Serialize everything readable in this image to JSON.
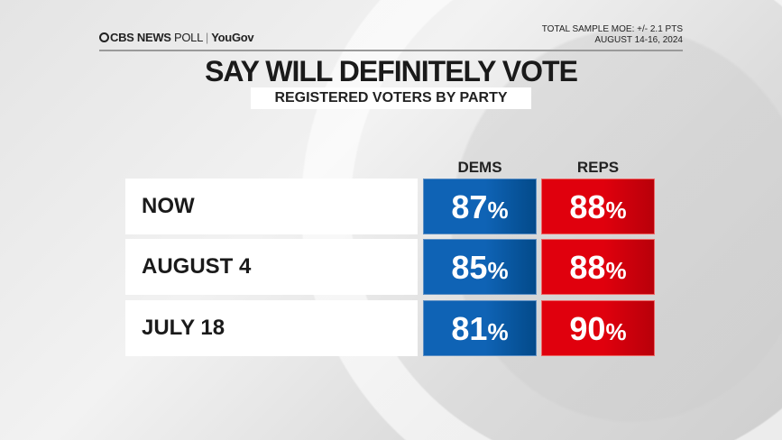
{
  "header": {
    "logo_brand": "CBS NEWS",
    "logo_poll": "POLL",
    "logo_sep": "|",
    "logo_partner": "YouGov",
    "moe": "TOTAL SAMPLE MOE: +/- 2.1 PTS",
    "dates": "AUGUST 14-16, 2024"
  },
  "chart_data": {
    "type": "table",
    "title": "SAY WILL DEFINITELY VOTE",
    "subtitle": "REGISTERED VOTERS BY PARTY",
    "columns": [
      "DEMS",
      "REPS"
    ],
    "rows": [
      {
        "label": "NOW",
        "dems": "87",
        "reps": "88"
      },
      {
        "label": "AUGUST 4",
        "dems": "85",
        "reps": "88"
      },
      {
        "label": "JULY 18",
        "dems": "81",
        "reps": "90"
      }
    ],
    "unit": "%",
    "colors": {
      "dems": "#0f63b5",
      "reps": "#e0000d"
    }
  }
}
